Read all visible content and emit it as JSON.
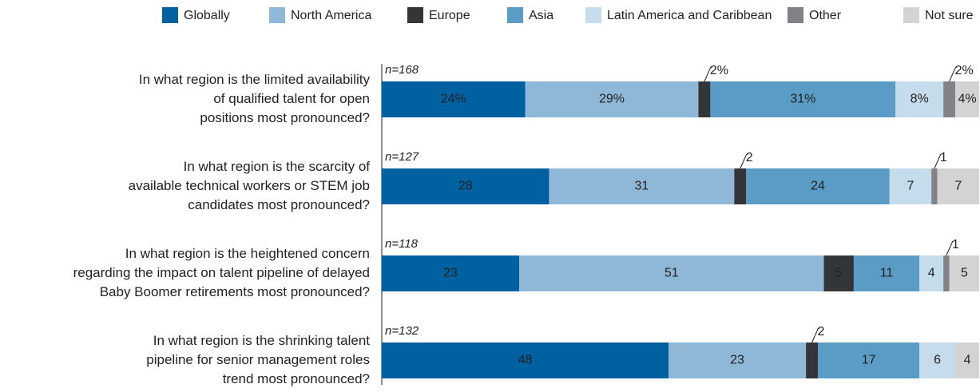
{
  "chart_data": {
    "type": "stacked-barh",
    "categories": [
      [
        "In what region is the limited availability",
        "of qualified talent for open",
        "positions most pronounced?"
      ],
      [
        "In what region is the scarcity of",
        "available technical workers or STEM job",
        "candidates most pronounced?"
      ],
      [
        "In what region is the heightened concern",
        "regarding the impact on talent pipeline of delayed",
        "Baby Boomer retirements most pronounced?"
      ],
      [
        "In what region is the shrinking talent",
        "pipeline for senior management roles",
        "trend most pronounced?"
      ]
    ],
    "sample_sizes": [
      "n=168",
      "n=127",
      "n=118",
      "n=132"
    ],
    "xlim": [
      0,
      100
    ],
    "legend": "top",
    "series": [
      {
        "name": "Globally",
        "color": "#0061a0",
        "values": [
          24,
          28,
          23,
          48
        ],
        "value_labels": [
          "24%",
          "28",
          "23",
          "48"
        ]
      },
      {
        "name": "North America",
        "color": "#8fb8d8",
        "values": [
          29,
          31,
          51,
          23
        ],
        "value_labels": [
          "29%",
          "31",
          "51",
          "23"
        ]
      },
      {
        "name": "Europe",
        "color": "#333538",
        "values": [
          2,
          2,
          5,
          2
        ],
        "value_labels": [
          "2%",
          "2",
          "5",
          "2"
        ]
      },
      {
        "name": "Asia",
        "color": "#5a9cc6",
        "values": [
          31,
          24,
          11,
          17
        ],
        "value_labels": [
          "31%",
          "24",
          "11",
          "17"
        ]
      },
      {
        "name": "Latin America and Caribbean",
        "color": "#c5dcec",
        "values": [
          8,
          7,
          4,
          6
        ],
        "value_labels": [
          "8%",
          "7",
          "4",
          "6"
        ]
      },
      {
        "name": "Other",
        "color": "#808285",
        "values": [
          2,
          1,
          1,
          null
        ],
        "value_labels": [
          "2%",
          "1",
          "1",
          null
        ]
      },
      {
        "name": "Not sure",
        "color": "#d3d3d3",
        "values": [
          4,
          7,
          5,
          4
        ],
        "value_labels": [
          "4%",
          "7",
          "5",
          "4"
        ]
      }
    ]
  }
}
